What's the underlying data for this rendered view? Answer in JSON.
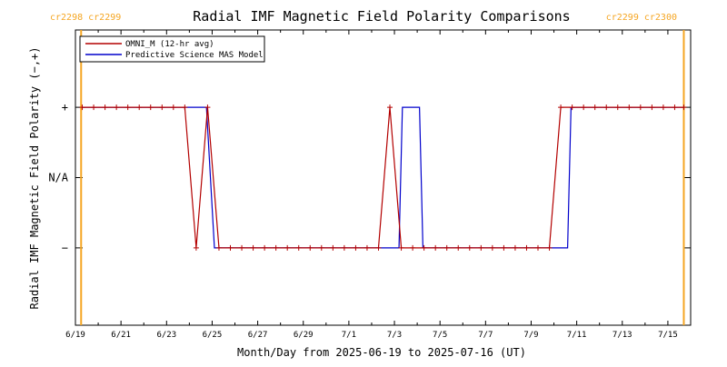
{
  "chart_data": {
    "type": "line",
    "title": "Radial IMF Magnetic Field Polarity Comparisons",
    "xlabel": "Month/Day from 2025-06-19 to 2025-07-16 (UT)",
    "ylabel": "Radial IMF Magnetic Field Polarity (−,+)",
    "xlim_days": [
      0,
      27
    ],
    "ylim": [
      -2.1,
      2.1
    ],
    "grid": false,
    "legend_position": "top-left",
    "x_ticks": [
      {
        "day": 0,
        "label": "6/19"
      },
      {
        "day": 2,
        "label": "6/21"
      },
      {
        "day": 4,
        "label": "6/23"
      },
      {
        "day": 6,
        "label": "6/25"
      },
      {
        "day": 8,
        "label": "6/27"
      },
      {
        "day": 10,
        "label": "6/29"
      },
      {
        "day": 12,
        "label": "7/1"
      },
      {
        "day": 14,
        "label": "7/3"
      },
      {
        "day": 16,
        "label": "7/5"
      },
      {
        "day": 18,
        "label": "7/7"
      },
      {
        "day": 20,
        "label": "7/9"
      },
      {
        "day": 22,
        "label": "7/11"
      },
      {
        "day": 24,
        "label": "7/13"
      },
      {
        "day": 26,
        "label": "7/15"
      }
    ],
    "y_ticks": [
      {
        "value": 1,
        "label": "+"
      },
      {
        "value": 0,
        "label": "N/A"
      },
      {
        "value": -1,
        "label": "−"
      }
    ],
    "carrington_markers": [
      {
        "day": 0.25,
        "label": "cr2298 cr2299",
        "color": "#f5a623"
      },
      {
        "day": 26.7,
        "label": "cr2299 cr2300",
        "color": "#f5a623"
      }
    ],
    "series": [
      {
        "name": "OMNI_M (12-hr avg)",
        "color": "#b30000",
        "marker": "+",
        "x": [
          0.3,
          0.8,
          1.3,
          1.8,
          2.3,
          2.8,
          3.3,
          3.8,
          4.3,
          4.8,
          5.3,
          5.8,
          6.3,
          6.8,
          7.3,
          7.8,
          8.3,
          8.8,
          9.3,
          9.8,
          10.3,
          10.8,
          11.3,
          11.8,
          12.3,
          12.8,
          13.3,
          13.8,
          14.3,
          14.8,
          15.3,
          15.8,
          16.3,
          16.8,
          17.3,
          17.8,
          18.3,
          18.8,
          19.3,
          19.8,
          20.3,
          20.8,
          21.3,
          21.8,
          22.3,
          22.8,
          23.3,
          23.8,
          24.3,
          24.8,
          25.3,
          25.8,
          26.3,
          26.7
        ],
        "y": [
          1,
          1,
          1,
          1,
          1,
          1,
          1,
          1,
          1,
          1,
          -1,
          1,
          -1,
          -1,
          -1,
          -1,
          -1,
          -1,
          -1,
          -1,
          -1,
          -1,
          -1,
          -1,
          -1,
          -1,
          -1,
          1,
          -1,
          -1,
          -1,
          -1,
          -1,
          -1,
          -1,
          -1,
          -1,
          -1,
          -1,
          -1,
          -1,
          -1,
          1,
          1,
          1,
          1,
          1,
          1,
          1,
          1,
          1,
          1,
          1,
          1
        ]
      },
      {
        "name": "Predictive Science MAS Model",
        "color": "#0000cc",
        "marker": "",
        "x": [
          0.3,
          5.6,
          5.75,
          6.1,
          14.2,
          14.35,
          15.1,
          15.25,
          21.6,
          21.75,
          26.7
        ],
        "y": [
          1,
          1,
          1,
          -1,
          -1,
          1,
          1,
          -1,
          -1,
          1,
          1
        ]
      }
    ]
  }
}
